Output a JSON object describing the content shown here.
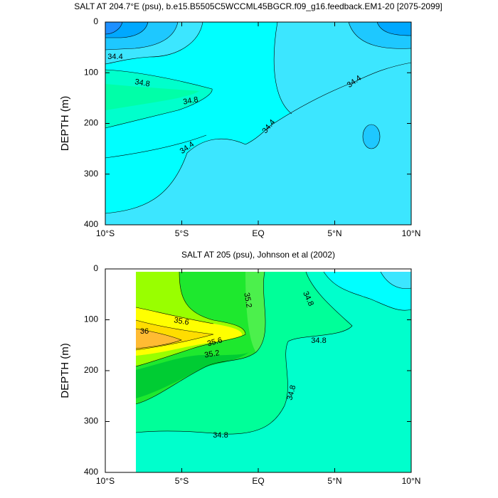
{
  "chart_data": [
    {
      "type": "contour",
      "title": "SALT AT 204.7°E (psu), b.e15.B5505C5WCCML45BGCR.f09_g16.feedback.EM1-20 [2075-2099]",
      "ylabel": "DEPTH (m)",
      "xlim": [
        -10,
        10
      ],
      "ylim": [
        0,
        400
      ],
      "y_inverted": true,
      "xticks": [
        {
          "value": -10,
          "label": "10°S"
        },
        {
          "value": -5,
          "label": "5°S"
        },
        {
          "value": 0,
          "label": "EQ"
        },
        {
          "value": 5,
          "label": "5°N"
        },
        {
          "value": 10,
          "label": "10°N"
        }
      ],
      "yticks": [
        0,
        100,
        200,
        300,
        400
      ],
      "contour_labels": [
        34.4,
        34.8,
        34.8,
        34.4,
        34.4,
        34.4
      ]
    },
    {
      "type": "contour",
      "title": "SALT AT 205 (psu), Johnson et al (2002)",
      "ylabel": "DEPTH (m)",
      "xlim": [
        -10,
        10
      ],
      "ylim": [
        0,
        400
      ],
      "y_inverted": true,
      "xticks": [
        {
          "value": -10,
          "label": "10°S"
        },
        {
          "value": -5,
          "label": "5°S"
        },
        {
          "value": 0,
          "label": "EQ"
        },
        {
          "value": 5,
          "label": "5°N"
        },
        {
          "value": 10,
          "label": "10°N"
        }
      ],
      "yticks": [
        0,
        100,
        200,
        300,
        400
      ],
      "contour_labels": [
        35.2,
        34.8,
        35.6,
        36,
        35.6,
        35.2,
        34.8,
        34.8,
        34.8
      ]
    }
  ]
}
